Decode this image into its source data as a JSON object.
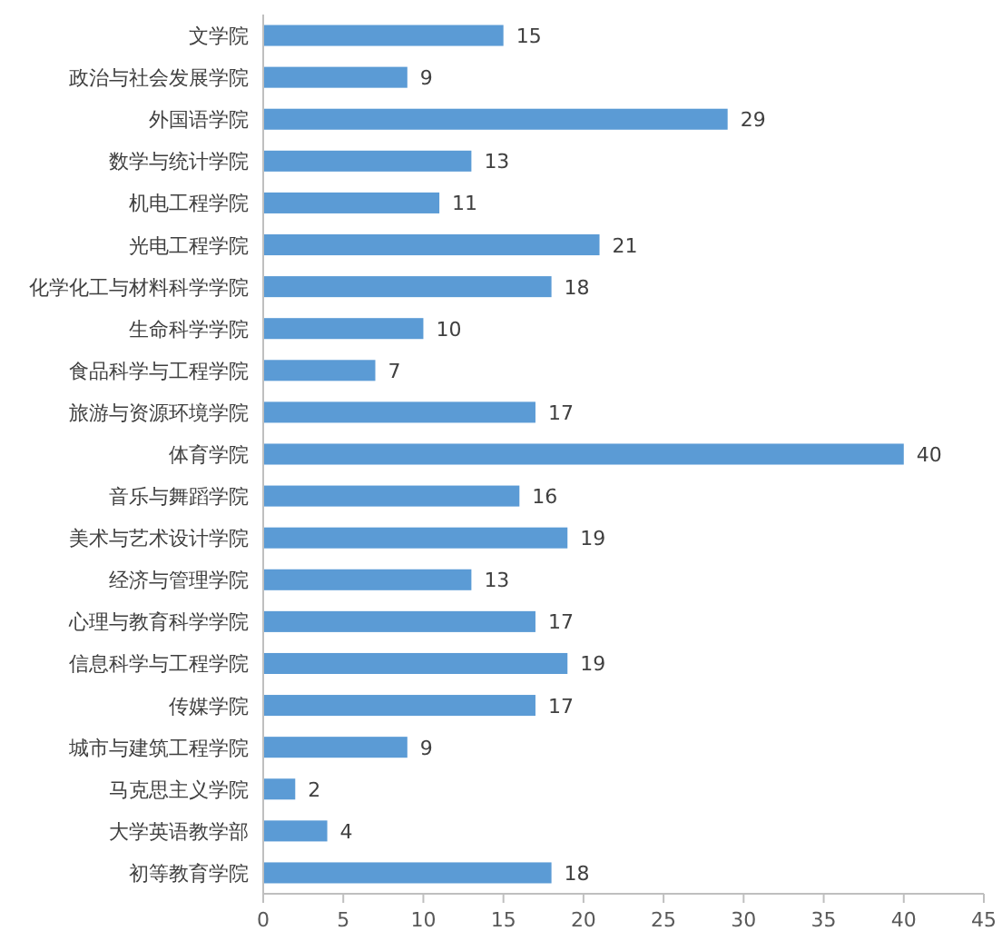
{
  "chart_data": {
    "type": "bar",
    "orientation": "horizontal",
    "categories": [
      "文学院",
      "政治与社会发展学院",
      "外国语学院",
      "数学与统计学院",
      "机电工程学院",
      "光电工程学院",
      "化学化工与材料科学学院",
      "生命科学学院",
      "食品科学与工程学院",
      "旅游与资源环境学院",
      "体育学院",
      "音乐与舞蹈学院",
      "美术与艺术设计学院",
      "经济与管理学院",
      "心理与教育科学学院",
      "信息科学与工程学院",
      "传媒学院",
      "城市与建筑工程学院",
      "马克思主义学院",
      "大学英语教学部",
      "初等教育学院"
    ],
    "values": [
      15,
      9,
      29,
      13,
      11,
      21,
      18,
      10,
      7,
      17,
      40,
      16,
      19,
      13,
      17,
      19,
      17,
      9,
      2,
      4,
      18
    ],
    "color": "#5b9bd5",
    "xlim": [
      0,
      45
    ],
    "xticks": [
      0,
      5,
      10,
      15,
      20,
      25,
      30,
      35,
      40,
      45
    ],
    "data_labels": true
  }
}
